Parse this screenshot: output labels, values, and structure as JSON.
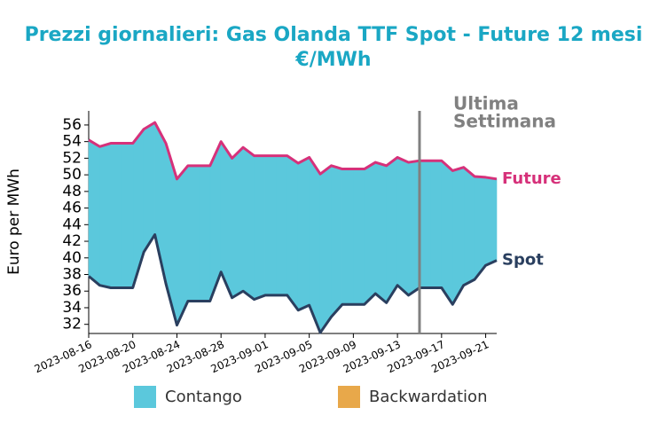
{
  "chart_data": {
    "type": "band",
    "title": "Prezzi giornalieri: Gas Olanda TTF Spot - Future 12 mesi",
    "subtitle": "€/MWh",
    "y_label": "Euro per MWh",
    "x": [
      "2023-08-16",
      "2023-08-17",
      "2023-08-18",
      "2023-08-19",
      "2023-08-20",
      "2023-08-21",
      "2023-08-22",
      "2023-08-23",
      "2023-08-24",
      "2023-08-25",
      "2023-08-26",
      "2023-08-27",
      "2023-08-28",
      "2023-08-29",
      "2023-08-30",
      "2023-08-31",
      "2023-09-01",
      "2023-09-02",
      "2023-09-03",
      "2023-09-04",
      "2023-09-05",
      "2023-09-06",
      "2023-09-07",
      "2023-09-08",
      "2023-09-09",
      "2023-09-10",
      "2023-09-11",
      "2023-09-12",
      "2023-09-13",
      "2023-09-14",
      "2023-09-15",
      "2023-09-16",
      "2023-09-17",
      "2023-09-18",
      "2023-09-19",
      "2023-09-20",
      "2023-09-21",
      "2023-09-22"
    ],
    "series": [
      {
        "name": "Future",
        "color": "#d6317a",
        "values": [
          54.2,
          53.4,
          53.8,
          53.8,
          53.8,
          55.5,
          56.3,
          53.8,
          49.5,
          51.1,
          51.1,
          51.1,
          54.0,
          52.0,
          53.3,
          52.3,
          52.3,
          52.3,
          52.3,
          51.4,
          52.1,
          50.1,
          51.1,
          50.7,
          50.7,
          50.7,
          51.5,
          51.1,
          52.1,
          51.5,
          51.7,
          51.7,
          51.7,
          50.5,
          50.9,
          49.8,
          49.7,
          49.5
        ]
      },
      {
        "name": "Spot",
        "color": "#2a3f5f",
        "values": [
          37.8,
          36.7,
          36.4,
          36.4,
          36.4,
          40.7,
          42.8,
          36.9,
          31.9,
          34.8,
          34.8,
          34.8,
          38.3,
          35.2,
          36.0,
          35.0,
          35.5,
          35.5,
          35.5,
          33.7,
          34.3,
          31.0,
          32.9,
          34.4,
          34.4,
          34.4,
          35.7,
          34.6,
          36.7,
          35.5,
          36.4,
          36.4,
          36.4,
          34.4,
          36.7,
          37.4,
          39.1,
          39.7
        ]
      }
    ],
    "areas": [
      {
        "name": "Contango",
        "color": "#5bc8dc"
      },
      {
        "name": "Backwardation",
        "color": "#e8a84a"
      }
    ],
    "vline": {
      "x": "2023-09-15",
      "label": [
        "Ultima",
        "Settimana"
      ],
      "color": "#808080"
    },
    "xlim": [
      "2023-08-16",
      "2023-09-22"
    ],
    "xticks": [
      "2023-08-16",
      "2023-08-20",
      "2023-08-24",
      "2023-08-28",
      "2023-09-01",
      "2023-09-05",
      "2023-09-09",
      "2023-09-13",
      "2023-09-17",
      "2023-09-21"
    ],
    "ylim": [
      30.9,
      57.7
    ],
    "yticks": [
      32,
      34,
      36,
      38,
      40,
      42,
      44,
      46,
      48,
      50,
      52,
      54,
      56
    ]
  }
}
